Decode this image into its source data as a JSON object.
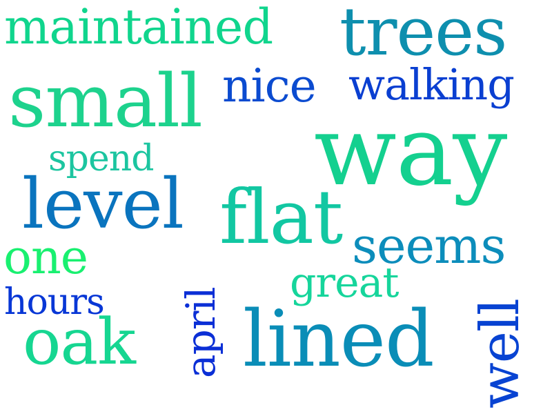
{
  "cloud": {
    "words": [
      {
        "text": "maintained",
        "color": "#10d58d"
      },
      {
        "text": "trees",
        "color": "#0e8fae"
      },
      {
        "text": "small",
        "color": "#1dd28d"
      },
      {
        "text": "nice",
        "color": "#0b4bd0"
      },
      {
        "text": "walking",
        "color": "#0a3fd1"
      },
      {
        "text": "way",
        "color": "#14d08f"
      },
      {
        "text": "spend",
        "color": "#1cc5a0"
      },
      {
        "text": "level",
        "color": "#0a74be"
      },
      {
        "text": "flat",
        "color": "#12c7a2"
      },
      {
        "text": "seems",
        "color": "#0c8dbb"
      },
      {
        "text": "one",
        "color": "#19f070"
      },
      {
        "text": "hours",
        "color": "#0837d6"
      },
      {
        "text": "great",
        "color": "#16d59b"
      },
      {
        "text": "oak",
        "color": "#16d691"
      },
      {
        "text": "april",
        "color": "#0b2fd6"
      },
      {
        "text": "lined",
        "color": "#0a8db7"
      },
      {
        "text": "well",
        "color": "#0843d2"
      }
    ]
  }
}
